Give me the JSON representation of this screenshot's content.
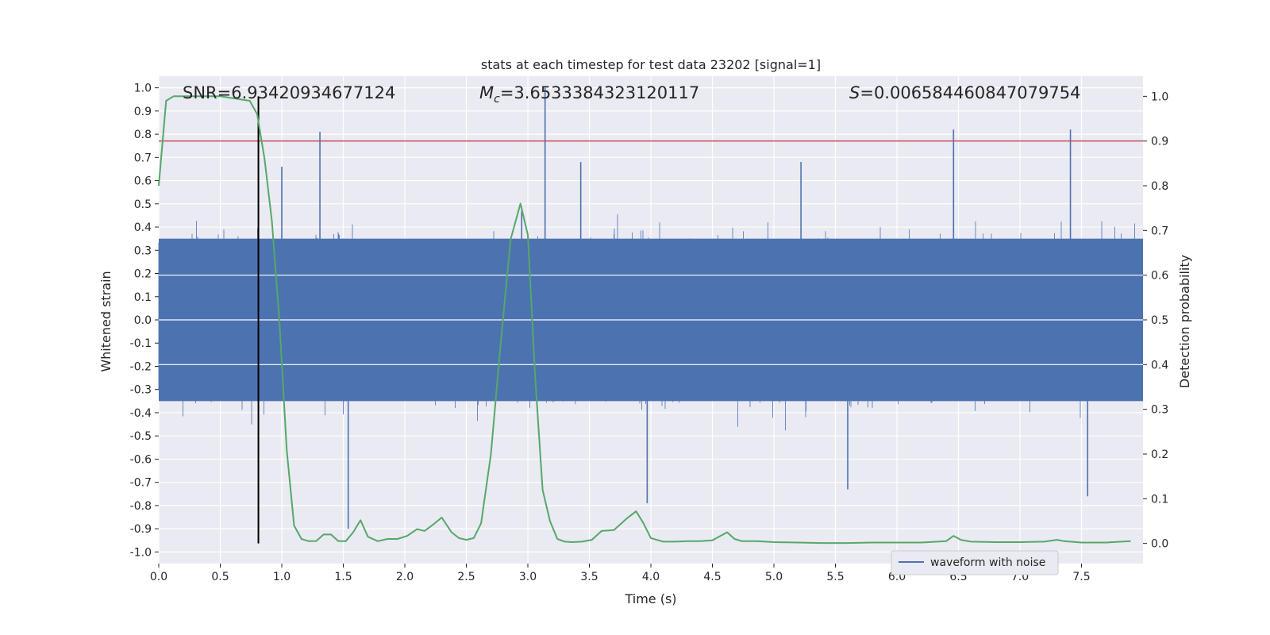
{
  "chart_data": {
    "type": "line",
    "title": "stats at each timestep for test data 23202 [signal=1]",
    "xlabel": "Time (s)",
    "ylabel_left": "Whitened strain",
    "ylabel_right": "Detection probability",
    "xlim": [
      0.0,
      8.0
    ],
    "ylim_left": [
      -1.05,
      1.05
    ],
    "ylim_right": [
      -0.045,
      1.045
    ],
    "x_ticks": [
      "0.0",
      "0.5",
      "1.0",
      "1.5",
      "2.0",
      "2.5",
      "3.0",
      "3.5",
      "4.0",
      "4.5",
      "5.0",
      "5.5",
      "6.0",
      "6.5",
      "7.0",
      "7.5"
    ],
    "y_left_ticks": [
      "-1.0",
      "-0.9",
      "-0.8",
      "-0.7",
      "-0.6",
      "-0.5",
      "-0.4",
      "-0.3",
      "-0.2",
      "-0.1",
      "0.0",
      "0.1",
      "0.2",
      "0.3",
      "0.4",
      "0.5",
      "0.6",
      "0.7",
      "0.8",
      "0.9",
      "1.0"
    ],
    "y_right_ticks": [
      "0.0",
      "0.1",
      "0.2",
      "0.3",
      "0.4",
      "0.5",
      "0.6",
      "0.7",
      "0.8",
      "0.9",
      "1.0"
    ],
    "grid": true,
    "legend": {
      "entries": [
        "waveform with nois e"
      ],
      "placement": "lower-right"
    },
    "annotations": {
      "snr_prefix": "SNR=",
      "snr": "6.93420934677124",
      "mc_symbol": "M",
      "mc_sub": "c",
      "mc_value": "=3.6533384323120117",
      "s_symbol": "S",
      "s_value": "=0.006584460847079754"
    },
    "threshold_line": {
      "axis": "right",
      "y": 0.9,
      "color": "#c44e52"
    },
    "event_marker": {
      "x": 0.81,
      "y_range_right": [
        0.0,
        1.0
      ],
      "color": "#000000"
    },
    "strain_series": {
      "name": "waveform with noise",
      "color": "#4c72b0",
      "sample_rate_hz": 2048,
      "duration_s": 8.0,
      "core_band": [
        -0.35,
        0.35
      ],
      "typical_peak": [
        -0.56,
        0.56
      ],
      "spikes": [
        {
          "x": 1.31,
          "y": 0.81
        },
        {
          "x": 3.14,
          "y": 1.0
        },
        {
          "x": 6.46,
          "y": 0.82
        },
        {
          "x": 7.41,
          "y": 0.82
        },
        {
          "x": 1.54,
          "y": -0.9
        },
        {
          "x": 3.97,
          "y": -0.79
        },
        {
          "x": 7.55,
          "y": -0.76
        },
        {
          "x": 5.6,
          "y": -0.73
        },
        {
          "x": 2.95,
          "y": 0.47
        },
        {
          "x": 1.0,
          "y": 0.66
        },
        {
          "x": 3.43,
          "y": 0.68
        },
        {
          "x": 5.22,
          "y": 0.68
        }
      ]
    },
    "probability_series": {
      "name": "detection probability",
      "axis": "right",
      "color": "#55a868",
      "x": [
        0.0,
        0.06,
        0.12,
        0.5,
        0.74,
        0.8,
        0.86,
        0.92,
        0.98,
        1.04,
        1.1,
        1.16,
        1.22,
        1.28,
        1.34,
        1.4,
        1.46,
        1.52,
        1.58,
        1.64,
        1.7,
        1.78,
        1.86,
        1.94,
        2.02,
        2.1,
        2.16,
        2.22,
        2.3,
        2.38,
        2.44,
        2.5,
        2.56,
        2.62,
        2.7,
        2.78,
        2.86,
        2.94,
        3.0,
        3.06,
        3.12,
        3.18,
        3.24,
        3.3,
        3.36,
        3.44,
        3.52,
        3.6,
        3.7,
        3.8,
        3.88,
        3.94,
        4.0,
        4.1,
        4.2,
        4.3,
        4.4,
        4.5,
        4.56,
        4.62,
        4.68,
        4.74,
        4.86,
        5.0,
        5.2,
        5.4,
        5.6,
        5.8,
        6.0,
        6.2,
        6.4,
        6.46,
        6.52,
        6.6,
        6.8,
        7.0,
        7.2,
        7.3,
        7.36,
        7.5,
        7.7,
        7.9
      ],
      "y": [
        0.8,
        0.99,
        1.0,
        1.0,
        0.99,
        0.96,
        0.86,
        0.72,
        0.5,
        0.21,
        0.04,
        0.01,
        0.005,
        0.0055,
        0.02,
        0.02,
        0.005,
        0.005,
        0.025,
        0.052,
        0.015,
        0.005,
        0.01,
        0.01,
        0.017,
        0.032,
        0.028,
        0.04,
        0.058,
        0.025,
        0.012,
        0.008,
        0.012,
        0.045,
        0.2,
        0.45,
        0.68,
        0.76,
        0.69,
        0.37,
        0.12,
        0.05,
        0.01,
        0.004,
        0.003,
        0.004,
        0.008,
        0.028,
        0.03,
        0.055,
        0.072,
        0.045,
        0.012,
        0.004,
        0.004,
        0.005,
        0.005,
        0.007,
        0.016,
        0.025,
        0.01,
        0.005,
        0.005,
        0.003,
        0.002,
        0.001,
        0.001,
        0.002,
        0.002,
        0.002,
        0.005,
        0.017,
        0.008,
        0.004,
        0.003,
        0.003,
        0.004,
        0.008,
        0.005,
        0.002,
        0.002,
        0.005
      ]
    }
  }
}
